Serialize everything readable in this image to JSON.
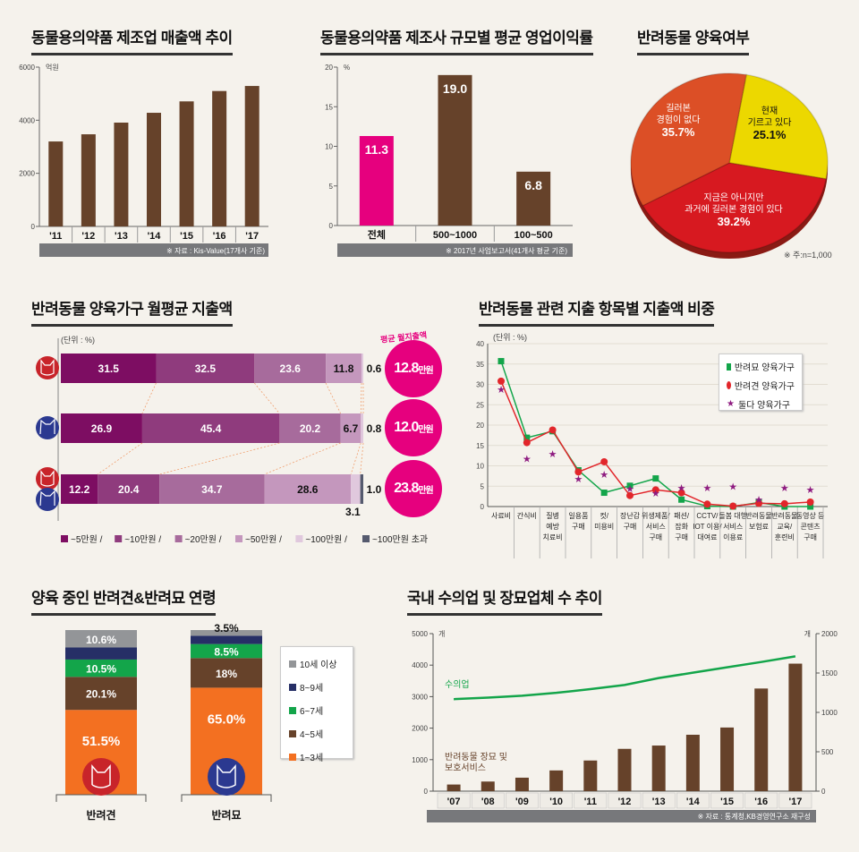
{
  "titles": {
    "t1": "동물용의약품 제조업 매출액 추이",
    "t2": "동물용의약품 제조사 규모별 평균 영업이익률",
    "t3": "반려동물 양육여부",
    "t4": "반려동물 양육가구 월평균 지출액",
    "t5": "반려동물 관련 지출 항목별 지출액 비중",
    "t6": "양육 중인 반려견&반려묘 연령",
    "t7": "국내 수의업 및 장묘업체 수 추이"
  },
  "colors": {
    "brown": "#66422a",
    "pink": "#e6007e",
    "green": "#13a54a",
    "red": "#e2262b",
    "purple": "#8e1b80",
    "gray": "#77787b"
  },
  "chart_data": [
    {
      "type": "bar",
      "title": "동물용의약품 제조업 매출액 추이",
      "ylabel": "억원",
      "categories": [
        "'11",
        "'12",
        "'13",
        "'14",
        "'15",
        "'16",
        "'17"
      ],
      "values": [
        3200,
        3470,
        3910,
        4280,
        4710,
        5100,
        5290
      ],
      "ylim": [
        0,
        6000
      ],
      "yticks": [
        0,
        2000,
        4000,
        6000
      ],
      "source": "※ 자료 : Kis-Value(17개사 기준)"
    },
    {
      "type": "bar",
      "title": "동물용의약품 제조사 규모별 평균 영업이익률",
      "ylabel": "%",
      "categories": [
        "전체",
        "500~1000",
        "100~500"
      ],
      "values": [
        11.3,
        19.0,
        6.8
      ],
      "value_labels": [
        "11.3",
        "19.0",
        "6.8"
      ],
      "bar_colors": [
        "#e6007e",
        "#66422a",
        "#66422a"
      ],
      "ylim": [
        0,
        20
      ],
      "yticks": [
        0,
        5,
        10,
        15,
        20
      ],
      "source": "※ 2017년 사업보고서(41개사 평균 기준)"
    },
    {
      "type": "pie",
      "title": "반려동물 양육여부",
      "slices": [
        {
          "label_lines": [
            "현재",
            "기르고 있다"
          ],
          "value": 25.1,
          "value_label": "25.1%",
          "color": "#ecd800"
        },
        {
          "label_lines": [
            "지금은 아니지만",
            "과거에 길러본 경험이 있다"
          ],
          "value": 39.2,
          "value_label": "39.2%",
          "color": "#d71920"
        },
        {
          "label_lines": [
            "길러본",
            "경험이 없다"
          ],
          "value": 35.7,
          "value_label": "35.7%",
          "color": "#dc4f26"
        }
      ],
      "note": "※ 주:n=1,000"
    },
    {
      "type": "bar",
      "orientation": "horizontal-stacked",
      "title": "반려동물 양육가구 월평균 지출액",
      "unit": "(단위 : %)",
      "avg_caption": "평균 월지출액",
      "legend": [
        "~5만원 /",
        "~10만원 /",
        "~20만원 /",
        "~50만원 /",
        "~100만원 /",
        "~100만원 초과"
      ],
      "segment_colors": [
        "#7d0d62",
        "#8f3b7d",
        "#a76b9c",
        "#c497bd",
        "#e0c8dd",
        "#555a6e"
      ],
      "rows": [
        {
          "group": "반려견",
          "values": [
            31.5,
            32.5,
            23.6,
            11.8,
            0.6
          ],
          "labels": [
            "31.5",
            "32.5",
            "23.6",
            "11.8",
            "0.6"
          ],
          "avg": "12.8",
          "avg_unit": "만원"
        },
        {
          "group": "반려묘",
          "values": [
            26.9,
            45.4,
            20.2,
            6.7,
            0.8
          ],
          "labels": [
            "26.9",
            "45.4",
            "20.2",
            "6.7",
            "0.8"
          ],
          "avg": "12.0",
          "avg_unit": "만원"
        },
        {
          "group": "둘다",
          "values": [
            12.2,
            20.4,
            34.7,
            28.6,
            3.1,
            1.0
          ],
          "labels": [
            "12.2",
            "20.4",
            "34.7",
            "28.6",
            "3.1",
            "1.0"
          ],
          "avg": "23.8",
          "avg_unit": "만원"
        }
      ]
    },
    {
      "type": "line",
      "title": "반려동물 관련 지출 항목별 지출액 비중",
      "unit": "(단위 : %)",
      "ylim": [
        0,
        40
      ],
      "yticks": [
        0,
        5,
        10,
        15,
        20,
        25,
        30,
        35,
        40
      ],
      "categories": [
        [
          "사료비"
        ],
        [
          "간식비"
        ],
        [
          "질병",
          "예방",
          "치료비"
        ],
        [
          "일용품",
          "구매"
        ],
        [
          "컷/",
          "미용비"
        ],
        [
          "장난감",
          "구매"
        ],
        [
          "위생제품/",
          "서비스",
          "구매"
        ],
        [
          "패션/",
          "잡화",
          "구매"
        ],
        [
          "CCTV/",
          "IOT 이용/",
          "대여료"
        ],
        [
          "돌봄 대행",
          "서비스",
          "이용료"
        ],
        [
          "반려동물",
          "보험료"
        ],
        [
          "반려동물",
          "교육/",
          "훈련비"
        ],
        [
          "동영상 등",
          "콘텐츠",
          "구매"
        ]
      ],
      "series": [
        {
          "name": "반려묘 양육가구",
          "marker": "square",
          "color": "#13a54a",
          "values": [
            35.7,
            16.9,
            18.5,
            8.9,
            3.4,
            5.1,
            6.9,
            1.7,
            0.1,
            0.0,
            1.0,
            0.0,
            0.0
          ]
        },
        {
          "name": "반려견 양육가구",
          "marker": "circle",
          "color": "#e2262b",
          "values": [
            30.8,
            15.7,
            18.8,
            8.5,
            11.0,
            2.7,
            4.1,
            3.4,
            0.6,
            0.1,
            0.8,
            0.7,
            1.1
          ]
        },
        {
          "name": "둘다 양육가구",
          "marker": "star",
          "color": "#8e1b80",
          "values": [
            28.8,
            11.8,
            13.0,
            6.8,
            7.9,
            4.4,
            3.3,
            4.6,
            4.6,
            5.0,
            1.8,
            4.6,
            4.2
          ]
        }
      ]
    },
    {
      "type": "bar",
      "orientation": "vertical-stacked",
      "title": "양육 중인 반려견&반려묘 연령",
      "legend": [
        "10세 이상",
        "8~9세",
        "6~7세",
        "4~5세",
        "1~3세"
      ],
      "segment_colors": [
        "#939598",
        "#262f66",
        "#13a54a",
        "#66422a",
        "#f37021"
      ],
      "bars": [
        {
          "name": "반려견",
          "segments_bottom_up": [
            51.5,
            20.1,
            10.5,
            7.3,
            10.6
          ],
          "labels": [
            "51.5%",
            "20.1%",
            "10.5%",
            "",
            "10.6%"
          ]
        },
        {
          "name": "반려묘",
          "segments_bottom_up": [
            65.0,
            18.0,
            8.5,
            5.0,
            3.5
          ],
          "labels": [
            "65.0%",
            "18%",
            "8.5%",
            "",
            "3.5%"
          ]
        }
      ]
    },
    {
      "type": "bar",
      "title": "국내 수의업 및 장묘업체 수 추이",
      "categories": [
        "'07",
        "'08",
        "'09",
        "'10",
        "'11",
        "'12",
        "'13",
        "'14",
        "'15",
        "'16",
        "'17"
      ],
      "y_left": {
        "unit": "개",
        "ylim": [
          0,
          5000
        ],
        "yticks": [
          0,
          1000,
          2000,
          3000,
          4000,
          5000
        ]
      },
      "y_right": {
        "unit": "개",
        "ylim": [
          0,
          2000
        ],
        "yticks": [
          0,
          500,
          1000,
          1500,
          2000
        ]
      },
      "series": [
        {
          "name": "수의업",
          "type": "line",
          "axis": "left",
          "color": "#13a54a",
          "values": [
            2920,
            2970,
            3030,
            3120,
            3240,
            3370,
            3590,
            3760,
            3930,
            4100,
            4280
          ]
        },
        {
          "name": "반려동물 장묘 및 보호서비스",
          "name_lines": [
            "반려동물 장묘 및",
            "보호서비스"
          ],
          "type": "bar",
          "axis": "right",
          "color": "#66422a",
          "values": [
            84,
            122,
            171,
            263,
            389,
            537,
            579,
            716,
            808,
            1303,
            1619
          ]
        }
      ],
      "source": "※ 자료 : 통계청,KB경영연구소 재구성"
    }
  ]
}
